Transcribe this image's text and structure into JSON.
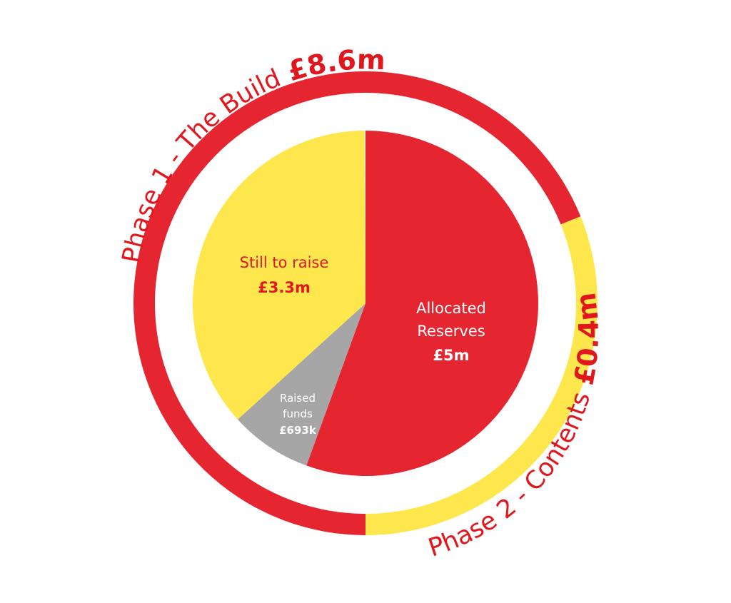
{
  "colors": {
    "red": "#e52630",
    "yellow": "#fde74c",
    "grey": "#a6a6a6",
    "label_red": "#e1171e",
    "white": "#ffffff"
  },
  "chart_data": {
    "type": "pie",
    "rings": [
      {
        "name": "outer",
        "total": 9.0,
        "segments": [
          {
            "label": "Phase 1 - The Build",
            "value_text": "£8.6m",
            "value": 8.6,
            "color": "red"
          },
          {
            "label": "Phase 2 - Contents",
            "value_text": "£0.4m",
            "value": 0.4,
            "color": "yellow"
          }
        ]
      },
      {
        "name": "inner",
        "total": 9.0,
        "slices": [
          {
            "label_lines": [
              "Allocated",
              "Reserves"
            ],
            "value_text": "£5m",
            "value": 5.0,
            "color": "red"
          },
          {
            "label_lines": [
              "Raised",
              "funds"
            ],
            "value_text": "£693k",
            "value": 0.693,
            "color": "grey"
          },
          {
            "label_lines": [
              "Still to raise"
            ],
            "value_text": "£3.3m",
            "value": 3.3,
            "color": "yellow"
          }
        ]
      }
    ]
  }
}
